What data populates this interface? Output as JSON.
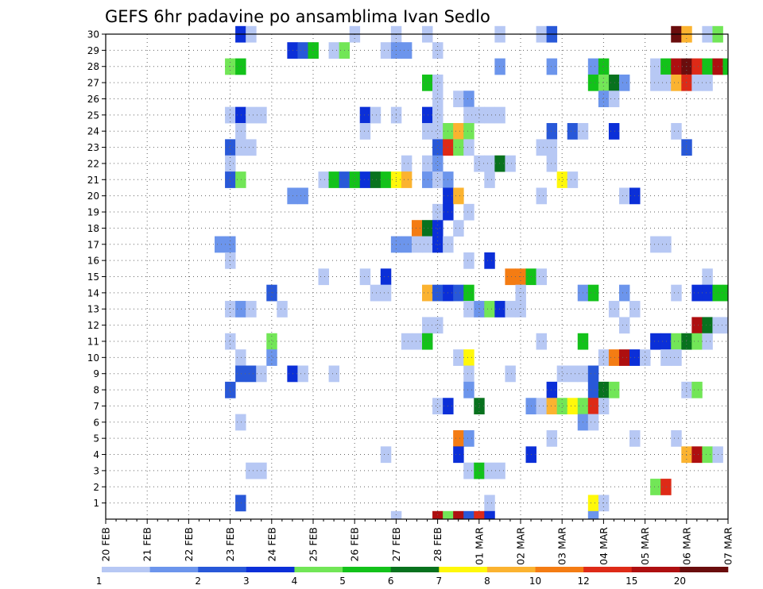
{
  "chart_data": {
    "type": "heatmap",
    "title": "GEFS 6hr padavine po ansamblima Ivan Sedlo",
    "xlabel": "",
    "ylabel": "",
    "x_tick_labels": [
      "20 FEB",
      "21 FEB",
      "22 FEB",
      "23 FEB",
      "24 FEB",
      "25 FEB",
      "26 FEB",
      "27 FEB",
      "28 FEB",
      "01 MAR",
      "02 MAR",
      "03 MAR",
      "04 MAR",
      "05 MAR",
      "06 MAR",
      "07 MAR"
    ],
    "y_tick_labels": [
      "1",
      "2",
      "3",
      "4",
      "5",
      "6",
      "7",
      "8",
      "9",
      "10",
      "11",
      "12",
      "13",
      "14",
      "15",
      "16",
      "17",
      "18",
      "19",
      "20",
      "21",
      "22",
      "23",
      "24",
      "25",
      "26",
      "27",
      "28",
      "29",
      "30"
    ],
    "x_unit": "6-hour steps from 20 FEB 00Z",
    "x_range": [
      0,
      60
    ],
    "y_range": [
      0,
      30
    ],
    "grid": true,
    "colorbar": {
      "position": "bottom",
      "labels": [
        "1",
        "2",
        "3",
        "4",
        "5",
        "6",
        "7",
        "8",
        "10",
        "12",
        "15",
        "20"
      ],
      "colors": [
        "#b7c8f4",
        "#6c95ec",
        "#2858d8",
        "#0b2fd8",
        "#72e657",
        "#13c21a",
        "#08721e",
        "#fff80a",
        "#fbb330",
        "#f47c13",
        "#de2a17",
        "#ae0f10",
        "#6a0d0d"
      ]
    },
    "colors": [
      "#b7c8f4",
      "#6c95ec",
      "#2858d8",
      "#0b2fd8",
      "#72e657",
      "#13c21a",
      "#08721e",
      "#fff80a",
      "#fbb330",
      "#f47c13",
      "#de2a17",
      "#ae0f10",
      "#6a0d0d"
    ],
    "cells_format": "[x_step, member, color_index]",
    "cells": [
      [
        13,
        30,
        3
      ],
      [
        14,
        30,
        0
      ],
      [
        24,
        30,
        0
      ],
      [
        28,
        30,
        0
      ],
      [
        31,
        30,
        0
      ],
      [
        38,
        30,
        0
      ],
      [
        42,
        30,
        0
      ],
      [
        43,
        30,
        2
      ],
      [
        55,
        30,
        12
      ],
      [
        56,
        30,
        8
      ],
      [
        58,
        30,
        0
      ],
      [
        59,
        30,
        4
      ],
      [
        18,
        29,
        3
      ],
      [
        19,
        29,
        2
      ],
      [
        20,
        29,
        5
      ],
      [
        22,
        29,
        0
      ],
      [
        23,
        29,
        4
      ],
      [
        27,
        29,
        0
      ],
      [
        28,
        29,
        1
      ],
      [
        29,
        29,
        1
      ],
      [
        32,
        29,
        0
      ],
      [
        12,
        28,
        4
      ],
      [
        13,
        28,
        5
      ],
      [
        38,
        28,
        1
      ],
      [
        43,
        28,
        1
      ],
      [
        47,
        28,
        1
      ],
      [
        48,
        28,
        5
      ],
      [
        53,
        28,
        0
      ],
      [
        54,
        28,
        5
      ],
      [
        55,
        28,
        11
      ],
      [
        56,
        28,
        12
      ],
      [
        57,
        28,
        10
      ],
      [
        58,
        28,
        5
      ],
      [
        59,
        28,
        11
      ],
      [
        60,
        28,
        5
      ],
      [
        31,
        27,
        5
      ],
      [
        32,
        27,
        0
      ],
      [
        47,
        27,
        5
      ],
      [
        48,
        27,
        4
      ],
      [
        49,
        27,
        6
      ],
      [
        50,
        27,
        1
      ],
      [
        53,
        27,
        0
      ],
      [
        54,
        27,
        0
      ],
      [
        55,
        27,
        8
      ],
      [
        56,
        27,
        10
      ],
      [
        57,
        27,
        0
      ],
      [
        58,
        27,
        0
      ],
      [
        32,
        26,
        0
      ],
      [
        34,
        26,
        0
      ],
      [
        35,
        26,
        1
      ],
      [
        48,
        26,
        1
      ],
      [
        49,
        26,
        0
      ],
      [
        12,
        25,
        0
      ],
      [
        13,
        25,
        3
      ],
      [
        14,
        25,
        0
      ],
      [
        15,
        25,
        0
      ],
      [
        25,
        25,
        3
      ],
      [
        26,
        25,
        0
      ],
      [
        28,
        25,
        0
      ],
      [
        31,
        25,
        3
      ],
      [
        32,
        25,
        0
      ],
      [
        35,
        25,
        0
      ],
      [
        36,
        25,
        0
      ],
      [
        37,
        25,
        0
      ],
      [
        38,
        25,
        0
      ],
      [
        13,
        24,
        0
      ],
      [
        25,
        24,
        0
      ],
      [
        31,
        24,
        0
      ],
      [
        32,
        24,
        0
      ],
      [
        33,
        24,
        4
      ],
      [
        34,
        24,
        8
      ],
      [
        35,
        24,
        4
      ],
      [
        43,
        24,
        2
      ],
      [
        45,
        24,
        2
      ],
      [
        46,
        24,
        0
      ],
      [
        49,
        24,
        3
      ],
      [
        55,
        24,
        0
      ],
      [
        12,
        23,
        2
      ],
      [
        13,
        23,
        0
      ],
      [
        14,
        23,
        0
      ],
      [
        32,
        23,
        2
      ],
      [
        33,
        23,
        10
      ],
      [
        34,
        23,
        4
      ],
      [
        35,
        23,
        0
      ],
      [
        42,
        23,
        0
      ],
      [
        43,
        23,
        0
      ],
      [
        56,
        23,
        2
      ],
      [
        12,
        22,
        0
      ],
      [
        29,
        22,
        0
      ],
      [
        31,
        22,
        0
      ],
      [
        32,
        22,
        1
      ],
      [
        36,
        22,
        0
      ],
      [
        37,
        22,
        0
      ],
      [
        38,
        22,
        6
      ],
      [
        39,
        22,
        0
      ],
      [
        43,
        22,
        0
      ],
      [
        12,
        21,
        2
      ],
      [
        13,
        21,
        4
      ],
      [
        21,
        21,
        0
      ],
      [
        22,
        21,
        5
      ],
      [
        23,
        21,
        2
      ],
      [
        24,
        21,
        5
      ],
      [
        25,
        21,
        3
      ],
      [
        26,
        21,
        6
      ],
      [
        27,
        21,
        5
      ],
      [
        28,
        21,
        7
      ],
      [
        29,
        21,
        8
      ],
      [
        31,
        21,
        1
      ],
      [
        32,
        21,
        0
      ],
      [
        33,
        21,
        1
      ],
      [
        37,
        21,
        0
      ],
      [
        44,
        21,
        7
      ],
      [
        45,
        21,
        0
      ],
      [
        18,
        20,
        1
      ],
      [
        19,
        20,
        1
      ],
      [
        33,
        20,
        3
      ],
      [
        34,
        20,
        8
      ],
      [
        42,
        20,
        0
      ],
      [
        50,
        20,
        0
      ],
      [
        51,
        20,
        3
      ],
      [
        32,
        19,
        0
      ],
      [
        33,
        19,
        3
      ],
      [
        35,
        19,
        0
      ],
      [
        30,
        18,
        9
      ],
      [
        31,
        18,
        6
      ],
      [
        32,
        18,
        3
      ],
      [
        34,
        18,
        0
      ],
      [
        11,
        17,
        1
      ],
      [
        12,
        17,
        1
      ],
      [
        28,
        17,
        1
      ],
      [
        29,
        17,
        1
      ],
      [
        30,
        17,
        0
      ],
      [
        31,
        17,
        0
      ],
      [
        32,
        17,
        3
      ],
      [
        33,
        17,
        0
      ],
      [
        53,
        17,
        0
      ],
      [
        54,
        17,
        0
      ],
      [
        12,
        16,
        0
      ],
      [
        35,
        16,
        0
      ],
      [
        37,
        16,
        3
      ],
      [
        21,
        15,
        0
      ],
      [
        25,
        15,
        0
      ],
      [
        27,
        15,
        3
      ],
      [
        39,
        15,
        9
      ],
      [
        40,
        15,
        9
      ],
      [
        41,
        15,
        5
      ],
      [
        42,
        15,
        0
      ],
      [
        58,
        15,
        0
      ],
      [
        16,
        14,
        2
      ],
      [
        26,
        14,
        0
      ],
      [
        27,
        14,
        0
      ],
      [
        31,
        14,
        8
      ],
      [
        32,
        14,
        2
      ],
      [
        33,
        14,
        3
      ],
      [
        34,
        14,
        2
      ],
      [
        35,
        14,
        5
      ],
      [
        40,
        14,
        0
      ],
      [
        46,
        14,
        1
      ],
      [
        47,
        14,
        5
      ],
      [
        50,
        14,
        1
      ],
      [
        55,
        14,
        0
      ],
      [
        57,
        14,
        3
      ],
      [
        58,
        14,
        3
      ],
      [
        59,
        14,
        5
      ],
      [
        60,
        14,
        5
      ],
      [
        12,
        13,
        0
      ],
      [
        13,
        13,
        1
      ],
      [
        14,
        13,
        0
      ],
      [
        17,
        13,
        0
      ],
      [
        35,
        13,
        0
      ],
      [
        36,
        13,
        1
      ],
      [
        37,
        13,
        4
      ],
      [
        38,
        13,
        3
      ],
      [
        39,
        13,
        0
      ],
      [
        40,
        13,
        0
      ],
      [
        49,
        13,
        0
      ],
      [
        51,
        13,
        0
      ],
      [
        31,
        12,
        0
      ],
      [
        32,
        12,
        0
      ],
      [
        50,
        12,
        0
      ],
      [
        57,
        12,
        11
      ],
      [
        58,
        12,
        6
      ],
      [
        59,
        12,
        0
      ],
      [
        60,
        12,
        0
      ],
      [
        12,
        11,
        0
      ],
      [
        16,
        11,
        4
      ],
      [
        29,
        11,
        0
      ],
      [
        30,
        11,
        0
      ],
      [
        31,
        11,
        5
      ],
      [
        42,
        11,
        0
      ],
      [
        46,
        11,
        5
      ],
      [
        53,
        11,
        3
      ],
      [
        54,
        11,
        3
      ],
      [
        55,
        11,
        4
      ],
      [
        56,
        11,
        6
      ],
      [
        57,
        11,
        4
      ],
      [
        58,
        11,
        0
      ],
      [
        13,
        10,
        0
      ],
      [
        16,
        10,
        1
      ],
      [
        34,
        10,
        0
      ],
      [
        35,
        10,
        7
      ],
      [
        48,
        10,
        0
      ],
      [
        49,
        10,
        9
      ],
      [
        50,
        10,
        11
      ],
      [
        51,
        10,
        3
      ],
      [
        52,
        10,
        0
      ],
      [
        54,
        10,
        0
      ],
      [
        55,
        10,
        0
      ],
      [
        13,
        9,
        2
      ],
      [
        14,
        9,
        2
      ],
      [
        15,
        9,
        0
      ],
      [
        18,
        9,
        3
      ],
      [
        19,
        9,
        0
      ],
      [
        22,
        9,
        0
      ],
      [
        35,
        9,
        0
      ],
      [
        39,
        9,
        0
      ],
      [
        44,
        9,
        0
      ],
      [
        45,
        9,
        0
      ],
      [
        46,
        9,
        0
      ],
      [
        47,
        9,
        2
      ],
      [
        12,
        8,
        2
      ],
      [
        35,
        8,
        1
      ],
      [
        43,
        8,
        3
      ],
      [
        47,
        8,
        2
      ],
      [
        48,
        8,
        6
      ],
      [
        49,
        8,
        4
      ],
      [
        56,
        8,
        0
      ],
      [
        57,
        8,
        4
      ],
      [
        32,
        7,
        0
      ],
      [
        33,
        7,
        3
      ],
      [
        36,
        7,
        6
      ],
      [
        41,
        7,
        1
      ],
      [
        42,
        7,
        0
      ],
      [
        43,
        7,
        8
      ],
      [
        44,
        7,
        4
      ],
      [
        45,
        7,
        7
      ],
      [
        46,
        7,
        4
      ],
      [
        47,
        7,
        10
      ],
      [
        48,
        7,
        0
      ],
      [
        13,
        6,
        0
      ],
      [
        46,
        6,
        1
      ],
      [
        47,
        6,
        0
      ],
      [
        34,
        5,
        9
      ],
      [
        35,
        5,
        1
      ],
      [
        43,
        5,
        0
      ],
      [
        51,
        5,
        0
      ],
      [
        55,
        5,
        0
      ],
      [
        27,
        4,
        0
      ],
      [
        34,
        4,
        3
      ],
      [
        41,
        4,
        3
      ],
      [
        56,
        4,
        8
      ],
      [
        57,
        4,
        11
      ],
      [
        58,
        4,
        4
      ],
      [
        59,
        4,
        0
      ],
      [
        14,
        3,
        0
      ],
      [
        15,
        3,
        0
      ],
      [
        35,
        3,
        0
      ],
      [
        36,
        3,
        5
      ],
      [
        37,
        3,
        0
      ],
      [
        38,
        3,
        0
      ],
      [
        53,
        2,
        4
      ],
      [
        54,
        2,
        10
      ],
      [
        13,
        1,
        2
      ],
      [
        37,
        1,
        0
      ],
      [
        47,
        1,
        7
      ],
      [
        48,
        1,
        0
      ],
      [
        28,
        0,
        0
      ],
      [
        32,
        0,
        11
      ],
      [
        33,
        0,
        4
      ],
      [
        34,
        0,
        11
      ],
      [
        35,
        0,
        2
      ],
      [
        36,
        0,
        10
      ],
      [
        37,
        0,
        3
      ],
      [
        47,
        0,
        1
      ]
    ]
  }
}
